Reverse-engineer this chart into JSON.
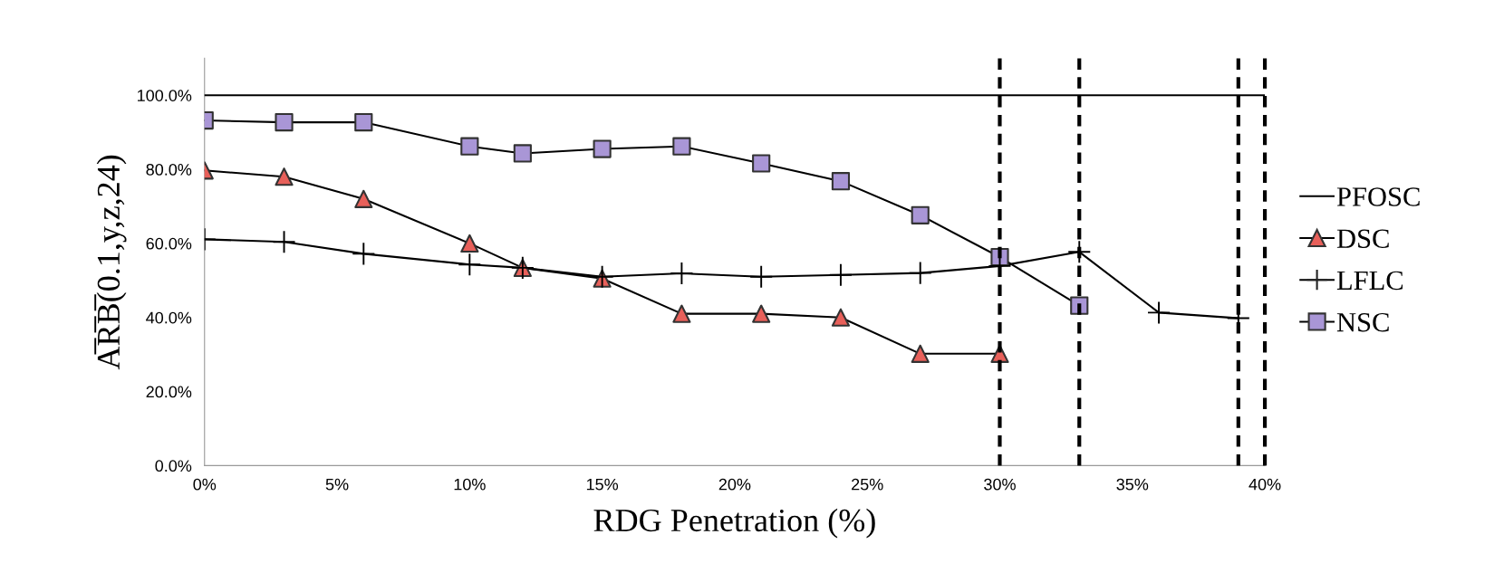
{
  "chart_data": {
    "type": "line",
    "xlabel": "RDG Penetration (%)",
    "ylabel": "A̅R̅B̅(0.1,y,z,24)",
    "x": [
      0,
      3,
      6,
      10,
      12,
      15,
      18,
      21,
      24,
      27,
      30,
      33,
      36,
      39
    ],
    "xlim": [
      0,
      40
    ],
    "xticks": [
      {
        "value": 0,
        "label": "0%"
      },
      {
        "value": 5,
        "label": "5%"
      },
      {
        "value": 10,
        "label": "10%"
      },
      {
        "value": 15,
        "label": "15%"
      },
      {
        "value": 20,
        "label": "20%"
      },
      {
        "value": 25,
        "label": "25%"
      },
      {
        "value": 30,
        "label": "30%"
      },
      {
        "value": 35,
        "label": "35%"
      },
      {
        "value": 40,
        "label": "40%"
      }
    ],
    "ylim": [
      0,
      110
    ],
    "yticks": [
      {
        "value": 0,
        "label": "0.0%"
      },
      {
        "value": 20,
        "label": "20.0%"
      },
      {
        "value": 40,
        "label": "40.0%"
      },
      {
        "value": 60,
        "label": "60.0%"
      },
      {
        "value": 80,
        "label": "80.0%"
      },
      {
        "value": 100,
        "label": "100.0%"
      }
    ],
    "series": [
      {
        "name": "PFOSC",
        "color": "#000000",
        "marker": "none",
        "x": [
          0,
          40
        ],
        "values": [
          100,
          100
        ]
      },
      {
        "name": "DSC",
        "color": "#e8605a",
        "marker": "triangle",
        "values": [
          79.7,
          78,
          72,
          60,
          53.4,
          50.5,
          41,
          41,
          40,
          30.2,
          30.2,
          null,
          null,
          null
        ]
      },
      {
        "name": "LFLC",
        "color": "#000000",
        "marker": "cross",
        "values": [
          61.1,
          60.4,
          57.2,
          54.3,
          53.4,
          51,
          51.9,
          51,
          51.5,
          52,
          53.9,
          57.7,
          41.3,
          39.8
        ]
      },
      {
        "name": "NSC",
        "color": "#a996d6",
        "marker": "square",
        "values": [
          93.2,
          92.7,
          92.7,
          86.2,
          84.3,
          85.5,
          86.2,
          81.6,
          76.8,
          67.6,
          56.3,
          43.2,
          null,
          null
        ]
      }
    ],
    "ref_lines": [
      {
        "axis": "x",
        "value": 30,
        "color": "#000000",
        "line_style": "dashed"
      },
      {
        "axis": "x",
        "value": 33,
        "color": "#000000",
        "line_style": "dashed"
      },
      {
        "axis": "x",
        "value": 39,
        "color": "#000000",
        "line_style": "dashed"
      },
      {
        "axis": "x",
        "value": 40,
        "color": "#000000",
        "line_style": "dashed"
      }
    ],
    "grid": false,
    "legend": "right"
  }
}
